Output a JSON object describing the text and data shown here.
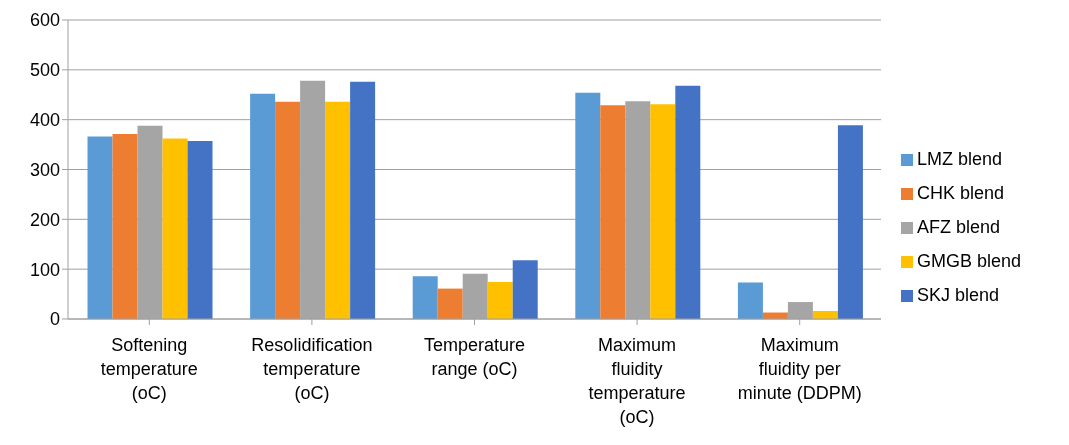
{
  "chart_data": {
    "type": "bar",
    "categories": [
      "Softening temperature (oC)",
      "Resolidification temperature (oC)",
      "Temperature range (oC)",
      "Maximum fluidity temperature (oC)",
      "Maximum fluidity per minute (DDPM)"
    ],
    "series": [
      {
        "name": "LMZ blend",
        "color": "#5b9bd5",
        "values": [
          366,
          452,
          86,
          454,
          73
        ]
      },
      {
        "name": "CHK blend",
        "color": "#ed7d31",
        "values": [
          371,
          436,
          61,
          429,
          13
        ]
      },
      {
        "name": "AFZ blend",
        "color": "#a5a5a5",
        "values": [
          388,
          478,
          91,
          437,
          34
        ]
      },
      {
        "name": "GMGB blend",
        "color": "#ffc000",
        "values": [
          362,
          436,
          74,
          431,
          16
        ]
      },
      {
        "name": "SKJ blend",
        "color": "#4472c4",
        "values": [
          357,
          476,
          118,
          468,
          389
        ]
      }
    ],
    "ylim": [
      0,
      600
    ],
    "yticks": [
      0,
      100,
      200,
      300,
      400,
      500,
      600
    ],
    "grid": "y",
    "legend": "right"
  }
}
